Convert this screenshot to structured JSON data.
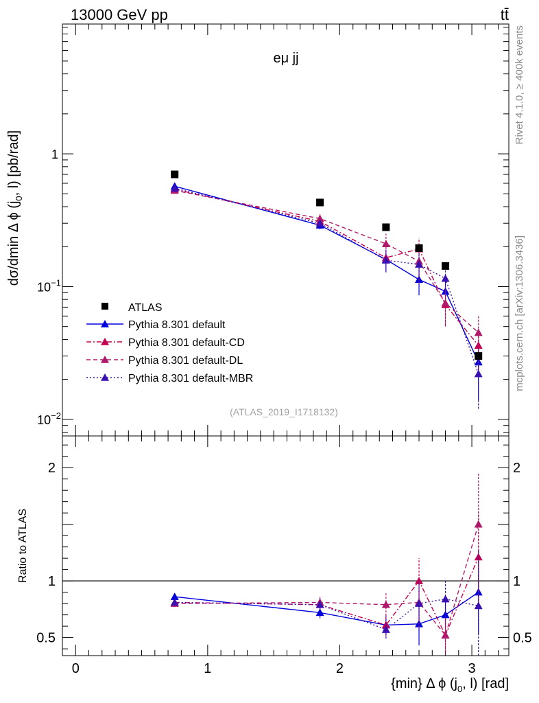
{
  "header": {
    "energy": "13000 GeV pp",
    "process": "tt̄"
  },
  "side": {
    "rivet": "Rivet 4.1.0, ≥ 400k events",
    "mcplots": "mcplots.cern.ch [arXiv:1306.3436]"
  },
  "chart_data": {
    "type": "line",
    "title": "eμ jj",
    "analysis_label": "(ATLAS_2019_I1718132)",
    "xlabel": "{min} Δ ϕ (j0, l) [rad]",
    "xlabel_parts": {
      "prefix": "{min} Δ ϕ (j",
      "sub": "0",
      "suffix": ", l) [rad]"
    },
    "ylabel": "dσ/dmin Δ ϕ (j0, l) [pb/rad]",
    "ylabel_parts": {
      "prefix": "dσ/dmin Δ ϕ (j",
      "sub": "0",
      "suffix": ", l) [pb/rad]"
    },
    "ratio_ylabel": "Ratio to ATLAS",
    "xlim": [
      -0.1,
      3.28
    ],
    "ylim": [
      0.0075,
      9.5
    ],
    "yscale": "log",
    "ratio_ylim": [
      0.34,
      2.28
    ],
    "x_ticks": [
      {
        "value": 0,
        "label": "0"
      },
      {
        "value": 1,
        "label": "1"
      },
      {
        "value": 2,
        "label": "2"
      },
      {
        "value": 3,
        "label": "3"
      }
    ],
    "y_ticks": [
      {
        "value": 1,
        "label": "1",
        "sup": ""
      },
      {
        "value": 0.1,
        "label": "10",
        "sup": "−1"
      },
      {
        "value": 0.01,
        "label": "10",
        "sup": "−2"
      }
    ],
    "ratio_ticks": [
      {
        "value": 0.5,
        "label": "0.5"
      },
      {
        "value": 1,
        "label": "1"
      },
      {
        "value": 2,
        "label": "2"
      }
    ],
    "x": [
      0.75,
      1.85,
      2.35,
      2.6,
      2.8,
      3.05
    ],
    "reference": {
      "name": "ATLAS",
      "color": "#000000",
      "values": [
        0.7,
        0.43,
        0.28,
        0.195,
        0.143,
        0.03
      ]
    },
    "series": [
      {
        "name": "Pythia 8.301 default",
        "color": "#0000dd",
        "dash": "solid",
        "values": [
          0.57,
          0.29,
          0.16,
          0.113,
          0.092,
          0.027
        ],
        "errors": [
          0.03,
          0.02,
          0.03,
          0.027,
          0.018,
          0.013
        ],
        "ratio": [
          0.86,
          0.72,
          0.61,
          0.62,
          0.7,
          0.9
        ],
        "ratio_errors": [
          0.03,
          0.05,
          0.08,
          0.19,
          0.13,
          0.37
        ]
      },
      {
        "name": "Pythia 8.301 default-CD",
        "color": "#c40050",
        "dash": "7,3,2,3",
        "values": [
          0.54,
          0.31,
          0.165,
          0.192,
          0.073,
          0.036
        ],
        "errors": [
          0.02,
          0.02,
          0.03,
          0.04,
          0.022,
          0.012
        ],
        "ratio": [
          0.81,
          0.79,
          0.61,
          1.0,
          0.52,
          1.21
        ],
        "ratio_errors": [
          0.03,
          0.05,
          0.1,
          0.2,
          0.15,
          0.4
        ]
      },
      {
        "name": "Pythia 8.301 default-DL",
        "color": "#b0186a",
        "dash": "6,4",
        "values": [
          0.53,
          0.325,
          0.21,
          0.155,
          0.075,
          0.045
        ],
        "errors": [
          0.02,
          0.025,
          0.04,
          0.05,
          0.025,
          0.015
        ],
        "ratio": [
          0.8,
          0.81,
          0.79,
          0.81,
          0.52,
          1.5
        ],
        "ratio_errors": [
          0.03,
          0.06,
          0.1,
          0.22,
          0.17,
          0.45
        ]
      },
      {
        "name": "Pythia 8.301 default-MBR",
        "color": "#3a10b0",
        "dash": "2,3",
        "values": [
          0.55,
          0.3,
          0.158,
          0.147,
          0.115,
          0.022
        ],
        "errors": [
          0.02,
          0.02,
          0.03,
          0.04,
          0.02,
          0.01
        ],
        "ratio": [
          0.81,
          0.79,
          0.57,
          0.8,
          0.84,
          0.78
        ],
        "ratio_errors": [
          0.03,
          0.05,
          0.08,
          0.2,
          0.16,
          0.45
        ]
      }
    ],
    "legend_position": "lower-left"
  }
}
